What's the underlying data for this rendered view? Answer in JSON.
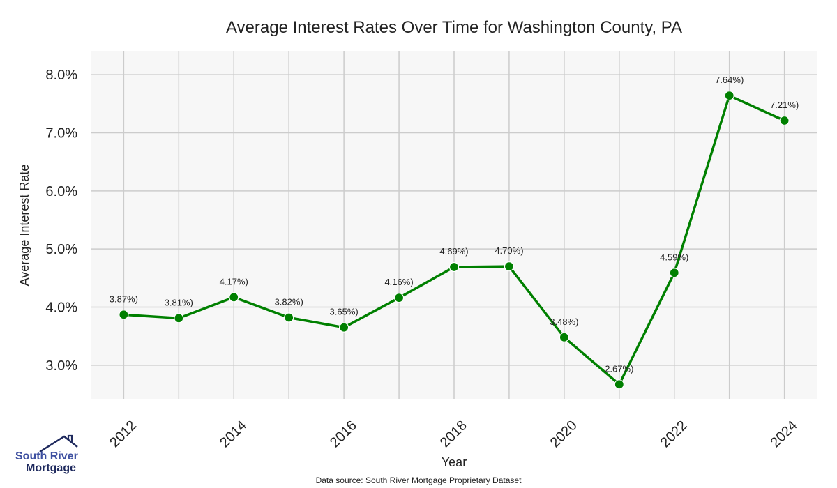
{
  "chart_data": {
    "type": "line",
    "title": "Average Interest Rates Over Time for Washington County, PA",
    "xlabel": "Year",
    "ylabel": "Average Interest Rate",
    "x": [
      2012,
      2013,
      2014,
      2015,
      2016,
      2017,
      2018,
      2019,
      2020,
      2021,
      2022,
      2023,
      2024
    ],
    "series": [
      {
        "name": "Average Interest Rate",
        "values": [
          3.87,
          3.81,
          4.17,
          3.82,
          3.65,
          4.16,
          4.69,
          4.7,
          3.48,
          2.67,
          4.59,
          7.64,
          7.21
        ],
        "color": "#008000"
      }
    ],
    "data_labels": [
      "3.87%)",
      "3.81%)",
      "4.17%)",
      "3.82%)",
      "3.65%)",
      "4.16%)",
      "4.69%)",
      "4.70%)",
      "3.48%)",
      "2.67%)",
      "4.59%)",
      "7.64%)",
      "7.21%)"
    ],
    "xticks": [
      2012,
      2014,
      2016,
      2018,
      2020,
      2022,
      2024
    ],
    "xtick_labels": [
      "2012",
      "2014",
      "2016",
      "2018",
      "2020",
      "2022",
      "2024"
    ],
    "yticks": [
      3,
      4,
      5,
      6,
      7,
      8
    ],
    "ytick_labels": [
      "3.0%",
      "4.0%",
      "5.0%",
      "6.0%",
      "7.0%",
      "8.0%"
    ],
    "xlim": [
      2011.4,
      2024.6
    ],
    "ylim": [
      2.41,
      8.41
    ],
    "grid": true,
    "plot_background": "#f7f7f7",
    "grid_color": "#cccccc"
  },
  "footer": {
    "source": "Data source: South River Mortgage Proprietary Dataset"
  },
  "logo": {
    "line1": "South River",
    "line2": "Mortgage",
    "color1": "#3d4fa0",
    "color2": "#1f2a5e"
  }
}
